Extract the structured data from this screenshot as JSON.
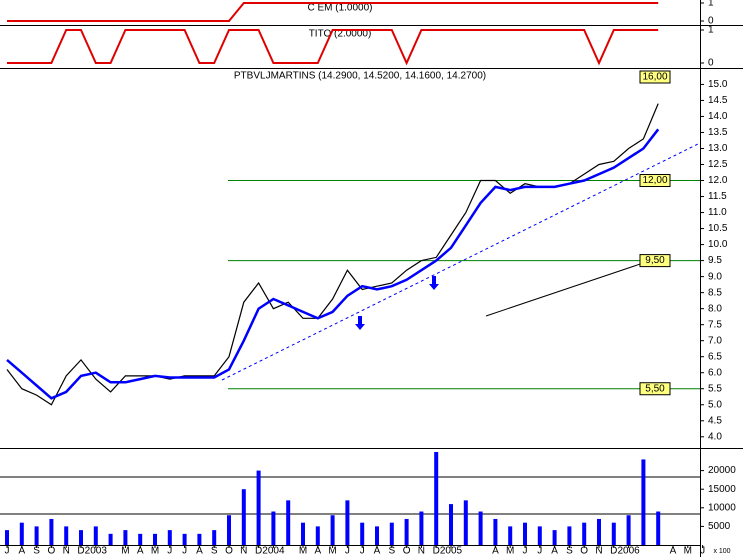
{
  "chart_data": [
    {
      "type": "step",
      "title": "C EM (1.0000)",
      "ylim": [
        0,
        1
      ],
      "yticks": [
        0,
        1
      ],
      "color": "#e00000",
      "values": [
        0,
        0,
        0,
        0,
        0,
        0,
        0,
        0,
        0,
        0,
        0,
        0,
        0,
        0,
        0,
        0,
        1,
        1,
        1,
        1,
        1,
        1,
        1,
        1,
        1,
        1,
        1,
        1,
        1,
        1,
        1,
        1,
        1,
        1,
        1,
        1,
        1,
        1,
        1,
        1,
        1,
        1,
        1,
        1,
        1,
        null,
        null,
        null
      ]
    },
    {
      "type": "step",
      "title": "TITO (2.0000)",
      "ylim": [
        0,
        1
      ],
      "yticks": [
        0,
        1
      ],
      "color": "#e00000",
      "values": [
        0,
        0,
        0,
        0,
        1,
        1,
        0,
        0,
        1,
        1,
        1,
        1,
        1,
        0,
        0,
        1,
        1,
        1,
        0,
        0,
        0,
        0,
        1,
        1,
        1,
        1,
        1,
        0,
        1,
        1,
        1,
        1,
        1,
        1,
        1,
        1,
        1,
        1,
        1,
        1,
        0,
        1,
        1,
        1,
        1,
        null,
        null,
        null
      ]
    },
    {
      "type": "line",
      "title": "PTBVLJMARTINS (14.2900, 14.5200, 14.1600, 14.2700)",
      "ylim": [
        3.65,
        15.45
      ],
      "yticks": [
        {
          "value": 4,
          "label": "4.0"
        },
        {
          "value": 4.5,
          "label": "4.5"
        },
        {
          "value": 5,
          "label": "5.0"
        },
        {
          "value": 5.5,
          "label": "5.5"
        },
        {
          "value": 6,
          "label": "6.0"
        },
        {
          "value": 6.5,
          "label": "6.5"
        },
        {
          "value": 7,
          "label": "7.0"
        },
        {
          "value": 7.5,
          "label": "7.5"
        },
        {
          "value": 8,
          "label": "8.0"
        },
        {
          "value": 8.5,
          "label": "8.5"
        },
        {
          "value": 9,
          "label": "9.0"
        },
        {
          "value": 9.5,
          "label": "9.5"
        },
        {
          "value": 10,
          "label": "10.0"
        },
        {
          "value": 10.5,
          "label": "10.5"
        },
        {
          "value": 11,
          "label": "11.0"
        },
        {
          "value": 11.5,
          "label": "11.5"
        },
        {
          "value": 12,
          "label": "12.0"
        },
        {
          "value": 12.5,
          "label": "12.5"
        },
        {
          "value": 13,
          "label": "13.0"
        },
        {
          "value": 13.5,
          "label": "13.5"
        },
        {
          "value": 14,
          "label": "14.0"
        },
        {
          "value": 14.5,
          "label": "14.5"
        },
        {
          "value": 15,
          "label": "15.0"
        }
      ],
      "series": [
        {
          "color": "#000000",
          "values": [
            6.1,
            5.5,
            5.3,
            5.0,
            5.9,
            6.4,
            5.8,
            5.4,
            5.9,
            5.9,
            5.9,
            5.8,
            5.9,
            5.9,
            5.9,
            6.5,
            8.2,
            8.8,
            8.0,
            8.2,
            7.7,
            7.7,
            8.3,
            9.2,
            8.6,
            8.7,
            8.8,
            9.2,
            9.5,
            9.6,
            10.3,
            11.0,
            12.0,
            12.0,
            11.6,
            11.9,
            11.8,
            11.8,
            11.9,
            12.2,
            12.5,
            12.6,
            13.0,
            13.3,
            14.4,
            null,
            null,
            null
          ]
        },
        {
          "color": "#0000ff",
          "values": [
            6.4,
            6.0,
            5.6,
            5.2,
            5.4,
            5.9,
            6.0,
            5.7,
            5.7,
            5.8,
            5.9,
            5.85,
            5.85,
            5.85,
            5.85,
            6.1,
            7.0,
            8.0,
            8.3,
            8.1,
            7.9,
            7.7,
            7.9,
            8.4,
            8.7,
            8.6,
            8.7,
            8.9,
            9.2,
            9.5,
            9.9,
            10.6,
            11.3,
            11.8,
            11.7,
            11.8,
            11.8,
            11.8,
            11.9,
            12.0,
            12.2,
            12.4,
            12.7,
            13.0,
            13.6,
            null,
            null,
            null
          ]
        }
      ],
      "levels": [
        {
          "value": 16,
          "label": "16,00"
        },
        {
          "value": 12,
          "label": "12,00"
        },
        {
          "value": 9.5,
          "label": "9,50"
        },
        {
          "value": 5.5,
          "label": "5,50"
        }
      ]
    },
    {
      "type": "bar",
      "unit": "x 100",
      "color": "#0000ff",
      "ylim": [
        0,
        25000
      ],
      "yticks": [
        5000,
        10000,
        15000,
        20000
      ],
      "categories": [
        "J",
        "A",
        "S",
        "O",
        "N",
        "D",
        "2003",
        null,
        "M",
        "A",
        "M",
        "J",
        "J",
        "A",
        "S",
        "O",
        "N",
        "D",
        "2004",
        null,
        "M",
        "A",
        "M",
        "J",
        "J",
        "A",
        "S",
        "O",
        "N",
        "D",
        "2005",
        null,
        null,
        "A",
        "M",
        "J",
        "J",
        "A",
        "S",
        "O",
        "N",
        "D",
        "2006",
        null,
        null,
        "A",
        "M",
        "J"
      ],
      "values": [
        4000,
        6000,
        5000,
        7000,
        5000,
        4000,
        5000,
        3000,
        4000,
        3000,
        3000,
        4000,
        3000,
        3000,
        4000,
        8000,
        15000,
        20000,
        9000,
        12000,
        6000,
        5000,
        8000,
        12000,
        6000,
        5000,
        6000,
        7000,
        9000,
        25000,
        11000,
        12000,
        9000,
        7000,
        5000,
        6000,
        5000,
        4000,
        5000,
        6000,
        7000,
        6000,
        8000,
        23000,
        9000,
        null,
        null,
        null
      ]
    }
  ]
}
